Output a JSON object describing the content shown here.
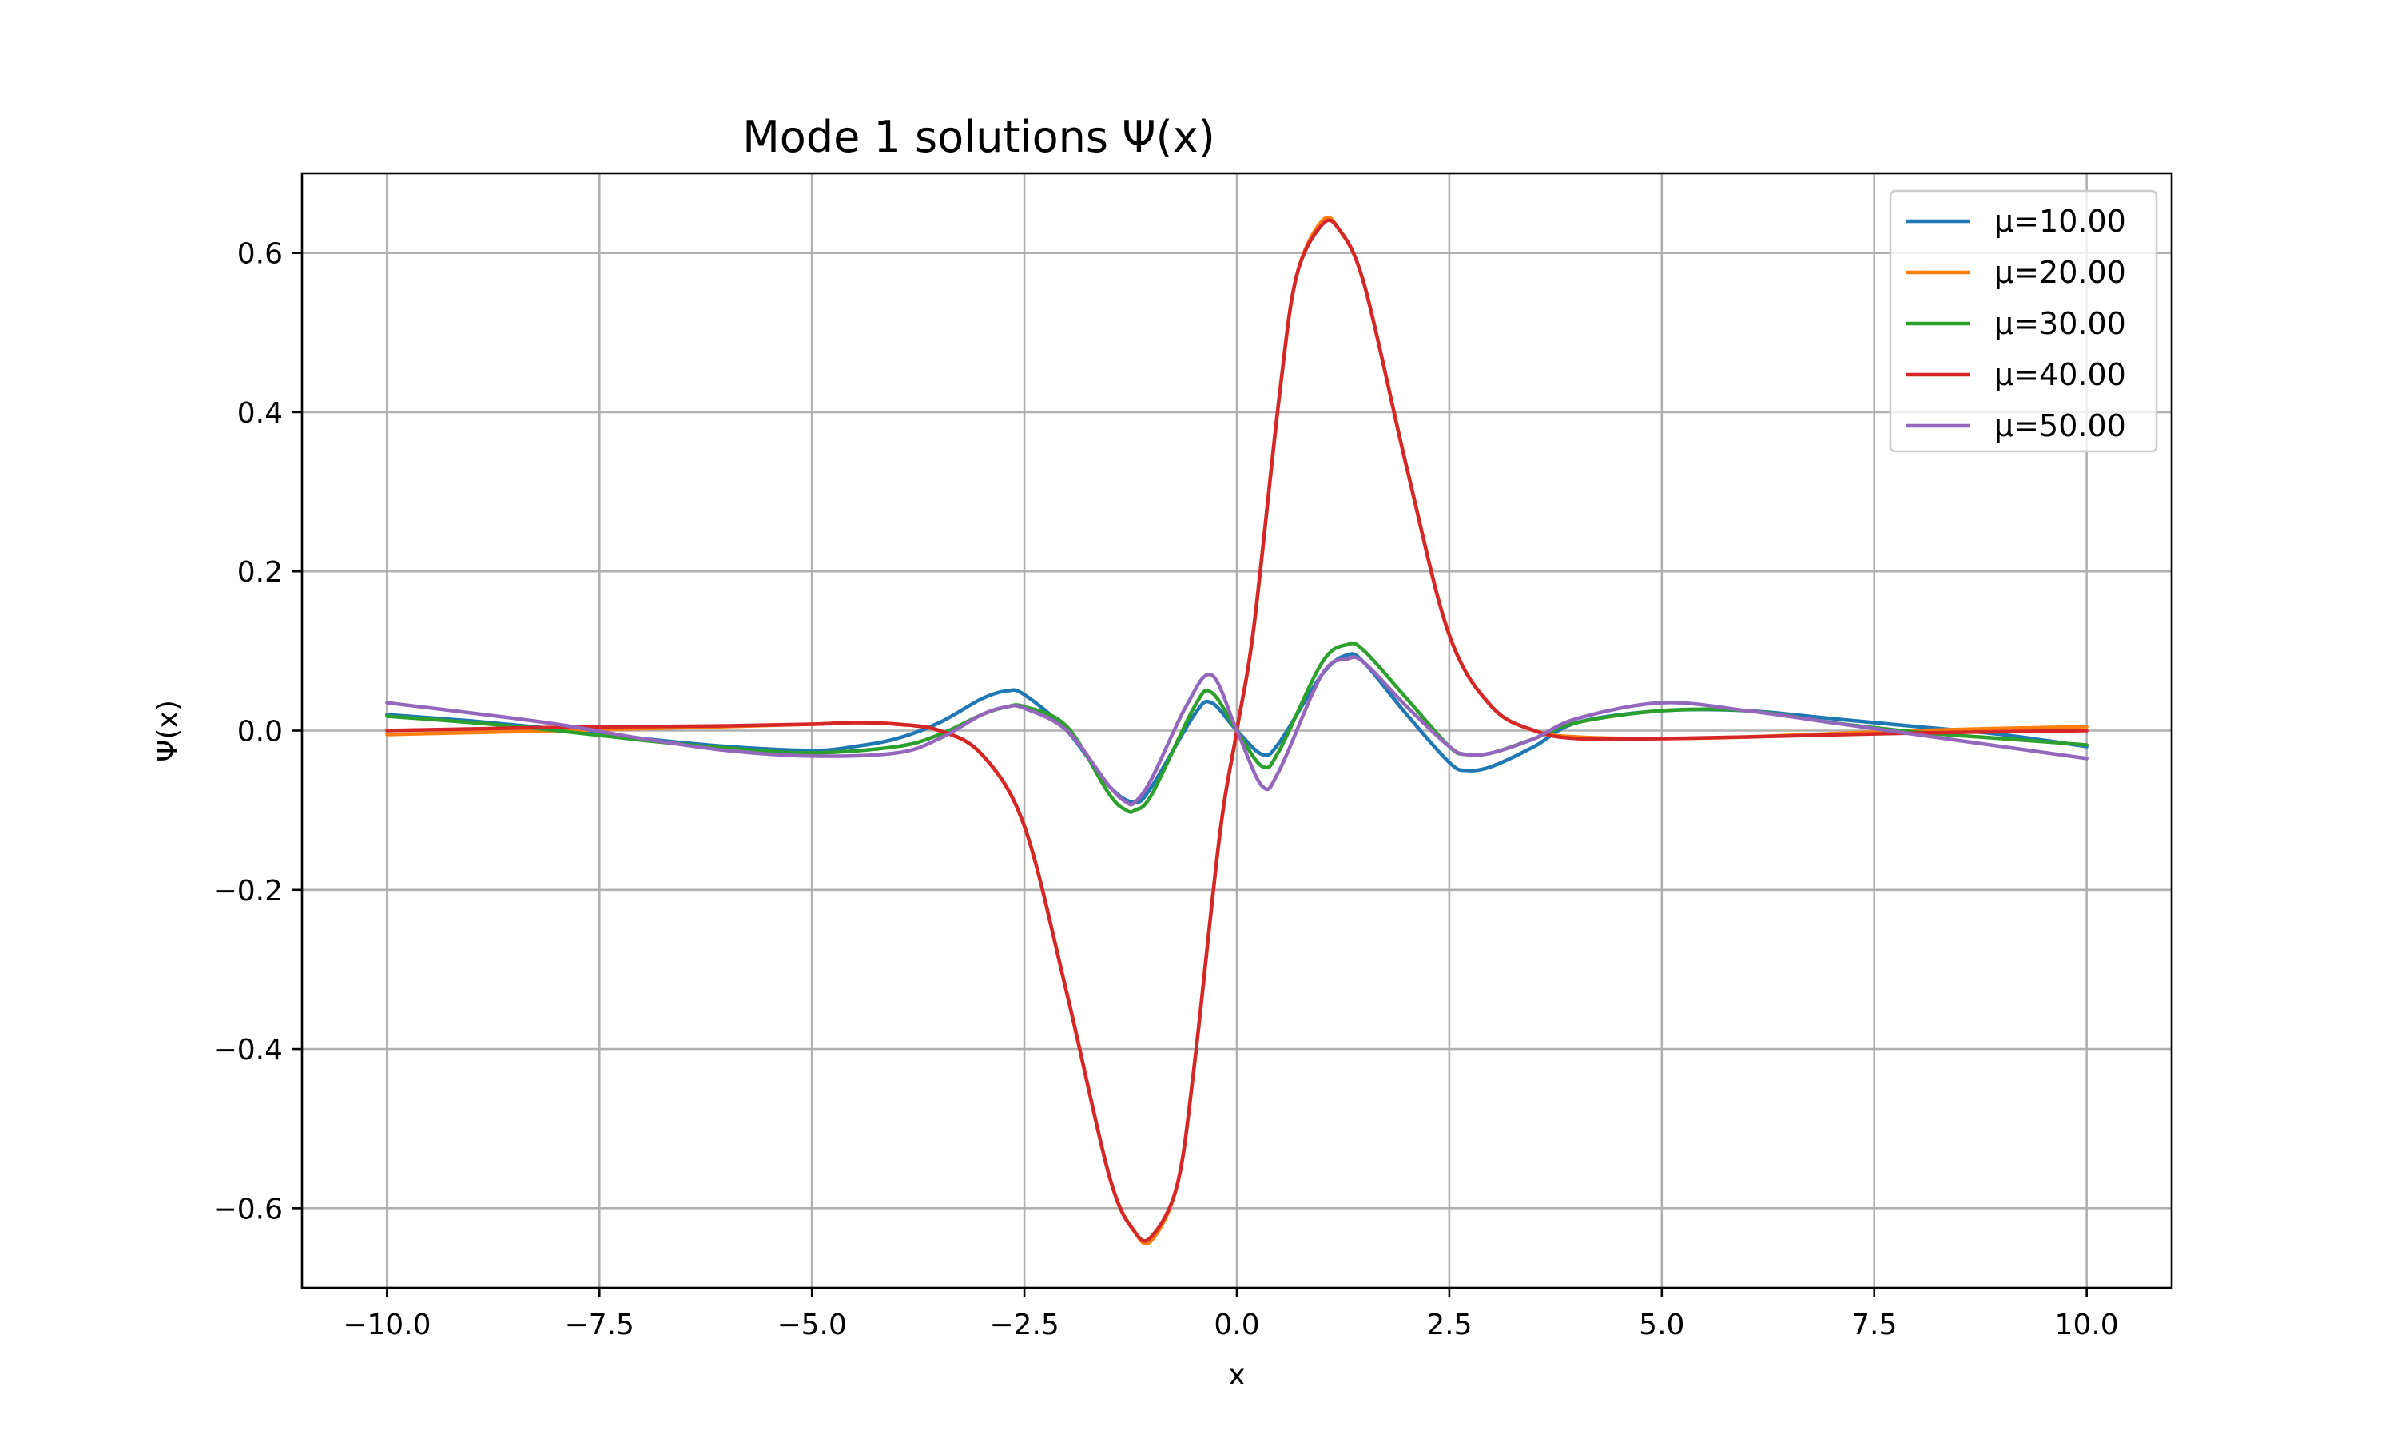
{
  "chart_data": {
    "type": "line",
    "title": "Mode 1 solutions Ψ(x)",
    "xlabel": "x",
    "ylabel": "Ψ(x)",
    "xlim": [
      -11,
      11
    ],
    "ylim": [
      -0.7,
      0.7
    ],
    "grid": true,
    "legend_position": "top-right",
    "xticks": [
      -10.0,
      -7.5,
      -5.0,
      -2.5,
      0.0,
      2.5,
      5.0,
      7.5,
      10.0
    ],
    "xtick_labels": [
      "−10.0",
      "−7.5",
      "−5.0",
      "−2.5",
      "0.0",
      "2.5",
      "5.0",
      "7.5",
      "10.0"
    ],
    "yticks": [
      -0.6,
      -0.4,
      -0.2,
      0.0,
      0.2,
      0.4,
      0.6
    ],
    "ytick_labels": [
      "−0.6",
      "−0.4",
      "−0.2",
      "0.0",
      "0.2",
      "0.4",
      "0.6"
    ],
    "series": [
      {
        "name": "μ=10.00",
        "color": "#1f77b4",
        "x": [
          -10,
          -9,
          -8,
          -7,
          -6,
          -5,
          -4.5,
          -4,
          -3.5,
          -3,
          -2.7,
          -2.5,
          -2,
          -1.5,
          -1.2,
          -1,
          -0.5,
          -0.3,
          0,
          0.3,
          0.5,
          1,
          1.3,
          1.5,
          2,
          2.5,
          2.7,
          3,
          3.5,
          4,
          5,
          6,
          7,
          8,
          9,
          10
        ],
        "y": [
          0.02,
          0.012,
          0.002,
          -0.01,
          -0.02,
          -0.025,
          -0.02,
          -0.01,
          0.01,
          0.04,
          0.05,
          0.045,
          0.0,
          -0.07,
          -0.09,
          -0.07,
          0.02,
          0.035,
          0.0,
          -0.03,
          -0.015,
          0.07,
          0.095,
          0.085,
          0.02,
          -0.04,
          -0.05,
          -0.045,
          -0.02,
          0.01,
          0.025,
          0.025,
          0.015,
          0.005,
          -0.005,
          -0.02
        ]
      },
      {
        "name": "μ=20.00",
        "color": "#ff7f0e",
        "x": [
          -10,
          -8,
          -6,
          -5,
          -4.5,
          -4,
          -3.5,
          -3,
          -2.5,
          -2,
          -1.5,
          -1.2,
          -1,
          -0.7,
          -0.5,
          -0.2,
          0,
          0.2,
          0.5,
          0.7,
          1,
          1.2,
          1.5,
          2,
          2.5,
          3,
          3.5,
          4,
          5,
          6,
          8,
          10
        ],
        "y": [
          -0.005,
          0.0,
          0.005,
          0.008,
          0.01,
          0.008,
          0.0,
          -0.03,
          -0.12,
          -0.33,
          -0.56,
          -0.63,
          -0.64,
          -0.57,
          -0.42,
          -0.13,
          0.0,
          0.13,
          0.42,
          0.57,
          0.64,
          0.63,
          0.56,
          0.33,
          0.12,
          0.03,
          0.0,
          -0.008,
          -0.01,
          -0.008,
          0.0,
          0.005
        ]
      },
      {
        "name": "μ=30.00",
        "color": "#2ca02c",
        "x": [
          -10,
          -9,
          -8,
          -7,
          -6,
          -5,
          -4,
          -3.5,
          -3,
          -2.7,
          -2.5,
          -2,
          -1.5,
          -1.3,
          -1.2,
          -1,
          -0.5,
          -0.3,
          0,
          0.3,
          0.5,
          1,
          1.3,
          1.5,
          2,
          2.5,
          2.7,
          3,
          3.5,
          4,
          5,
          6,
          7,
          8,
          9,
          10
        ],
        "y": [
          0.018,
          0.01,
          0.0,
          -0.012,
          -0.022,
          -0.028,
          -0.02,
          -0.005,
          0.02,
          0.03,
          0.03,
          0.005,
          -0.08,
          -0.1,
          -0.1,
          -0.08,
          0.03,
          0.048,
          0.0,
          -0.045,
          -0.025,
          0.085,
          0.108,
          0.1,
          0.04,
          -0.02,
          -0.03,
          -0.028,
          -0.01,
          0.01,
          0.025,
          0.025,
          0.01,
          -0.002,
          -0.01,
          -0.018
        ]
      },
      {
        "name": "μ=40.00",
        "color": "#d62728",
        "x": [
          -10,
          -8,
          -6,
          -5,
          -4.5,
          -4,
          -3.5,
          -3,
          -2.5,
          -2,
          -1.5,
          -1.2,
          -1,
          -0.7,
          -0.5,
          -0.2,
          0,
          0.2,
          0.5,
          0.7,
          1,
          1.2,
          1.5,
          2,
          2.5,
          3,
          3.5,
          4,
          5,
          6,
          8,
          10
        ],
        "y": [
          0.0,
          0.004,
          0.006,
          0.008,
          0.01,
          0.008,
          0.0,
          -0.03,
          -0.12,
          -0.33,
          -0.56,
          -0.63,
          -0.635,
          -0.57,
          -0.42,
          -0.13,
          0.0,
          0.13,
          0.42,
          0.57,
          0.635,
          0.63,
          0.56,
          0.33,
          0.12,
          0.03,
          0.0,
          -0.01,
          -0.01,
          -0.008,
          -0.003,
          0.0
        ]
      },
      {
        "name": "μ=50.00",
        "color": "#9467bd",
        "x": [
          -10,
          -9,
          -8,
          -7,
          -6,
          -5,
          -4,
          -3.5,
          -3,
          -2.7,
          -2.5,
          -2,
          -1.5,
          -1.3,
          -1.2,
          -1,
          -0.6,
          -0.3,
          0,
          0.3,
          0.5,
          1,
          1.3,
          1.5,
          2,
          2.5,
          2.7,
          3,
          3.5,
          4,
          5,
          6,
          7,
          8,
          9,
          10
        ],
        "y": [
          0.035,
          0.022,
          0.008,
          -0.01,
          -0.025,
          -0.032,
          -0.028,
          -0.01,
          0.02,
          0.03,
          0.028,
          0.0,
          -0.07,
          -0.09,
          -0.09,
          -0.06,
          0.03,
          0.07,
          0.0,
          -0.07,
          -0.05,
          0.07,
          0.09,
          0.085,
          0.03,
          -0.02,
          -0.03,
          -0.028,
          -0.01,
          0.015,
          0.035,
          0.025,
          0.01,
          -0.005,
          -0.02,
          -0.035
        ]
      }
    ]
  }
}
